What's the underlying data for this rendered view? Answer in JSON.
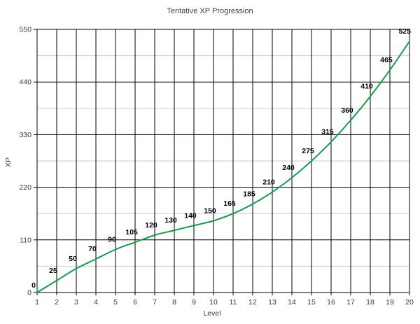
{
  "chart_data": {
    "type": "line",
    "title": "Tentative XP Progression",
    "xlabel": "Level",
    "ylabel": "XP",
    "categories": [
      1,
      2,
      3,
      4,
      5,
      6,
      7,
      8,
      9,
      10,
      11,
      12,
      13,
      14,
      15,
      16,
      17,
      18,
      19,
      20
    ],
    "values": [
      0,
      25,
      50,
      70,
      90,
      105,
      120,
      130,
      140,
      150,
      165,
      185,
      210,
      240,
      275,
      315,
      360,
      410,
      465,
      525
    ],
    "show_data_labels": true,
    "ylim": [
      0,
      550
    ],
    "y_major_ticks": [
      0,
      110,
      220,
      330,
      440,
      550
    ],
    "y_minor_ticks": [
      55,
      165,
      275,
      385,
      495
    ],
    "grid": true,
    "legend_position": "none",
    "line_color": "#10A04A",
    "major_grid_color": "#000000",
    "minor_grid_color": "#c9c9c9",
    "axis_color": "#000000",
    "background_color": "#ffffff"
  }
}
